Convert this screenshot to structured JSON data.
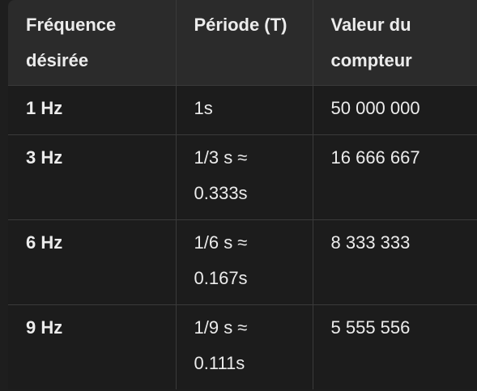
{
  "table": {
    "headers": [
      "Fréquence désirée",
      "Période (T)",
      "Valeur du compteur"
    ],
    "rows": [
      {
        "frequency": "1 Hz",
        "period": "1s",
        "counter": "50 000 000"
      },
      {
        "frequency": "3 Hz",
        "period": "1/3 s ≈ 0.333s",
        "counter": "16 666 667"
      },
      {
        "frequency": "6 Hz",
        "period": "1/6 s ≈ 0.167s",
        "counter": "8 333 333"
      },
      {
        "frequency": "9 Hz",
        "period": "1/9 s ≈ 0.111s",
        "counter": "5 555 556"
      }
    ]
  }
}
